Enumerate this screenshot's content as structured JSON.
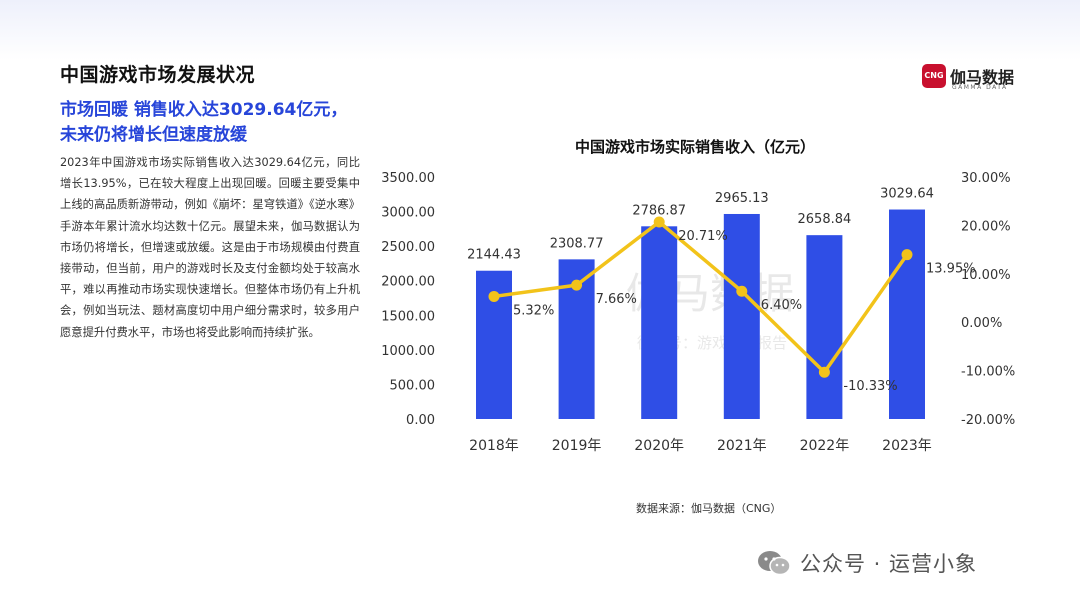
{
  "page": {
    "title": "中国游戏市场发展状况",
    "headline_line1": "市场回暖 销售收入达3029.64亿元，",
    "headline_line2": "未来仍将增长但速度放缓",
    "body": "2023年中国游戏市场实际销售收入达3029.64亿元，同比增长13.95%，已在较大程度上出现回暖。回暖主要受集中上线的高品质新游带动，例如《崩坏：星穹铁道》《逆水寒》手游本年累计流水均达数十亿元。展望未来，伽马数据认为市场仍将增长，但增速或放缓。这是由于市场规模由付费直接带动，但当前，用户的游戏时长及支付金额均处于较高水平，难以再推动市场实现快速增长。但整体市场仍有上升机会，例如当玩法、题材高度切中用户细分需求时，较多用户愿意提升付费水平，市场也将受此影响而持续扩张。",
    "source": "数据来源：伽马数据（CNG）",
    "watermark_center_cn": "伽马数据",
    "watermark_center_sub": "微信号：游戏产业报告",
    "footer_watermark": "公众号 · 运营小象"
  },
  "logo": {
    "mark": "CNG",
    "name_cn": "伽马数据",
    "name_en": "GAMMA DATA"
  },
  "chart_data": {
    "type": "bar",
    "title": "中国游戏市场实际销售收入（亿元）",
    "categories": [
      "2018年",
      "2019年",
      "2020年",
      "2021年",
      "2022年",
      "2023年"
    ],
    "series": [
      {
        "type": "bar",
        "axis": "left",
        "values": [
          2144.43,
          2308.77,
          2786.87,
          2965.13,
          2658.84,
          3029.64
        ],
        "labels": [
          "2144.43",
          "2308.77",
          "2786.87",
          "2965.13",
          "2658.84",
          "3029.64"
        ]
      },
      {
        "type": "line",
        "axis": "right",
        "values": [
          5.32,
          7.66,
          20.71,
          6.4,
          -10.33,
          13.95
        ],
        "labels": [
          "5.32%",
          "7.66%",
          "20.71%",
          "6.40%",
          "-10.33%",
          "13.95%"
        ]
      }
    ],
    "y_left": {
      "min": 0,
      "max": 3500,
      "ticks": [
        "0.00",
        "500.00",
        "1000.00",
        "1500.00",
        "2000.00",
        "2500.00",
        "3000.00",
        "3500.00"
      ]
    },
    "y_right": {
      "min": -20,
      "max": 30,
      "ticks": [
        "-20.00%",
        "-10.00%",
        "0.00%",
        "10.00%",
        "20.00%",
        "30.00%"
      ]
    },
    "grid": false,
    "colors": {
      "bar": "#2f4ee6",
      "line": "#f2c31a",
      "headline": "#2745d9"
    }
  }
}
